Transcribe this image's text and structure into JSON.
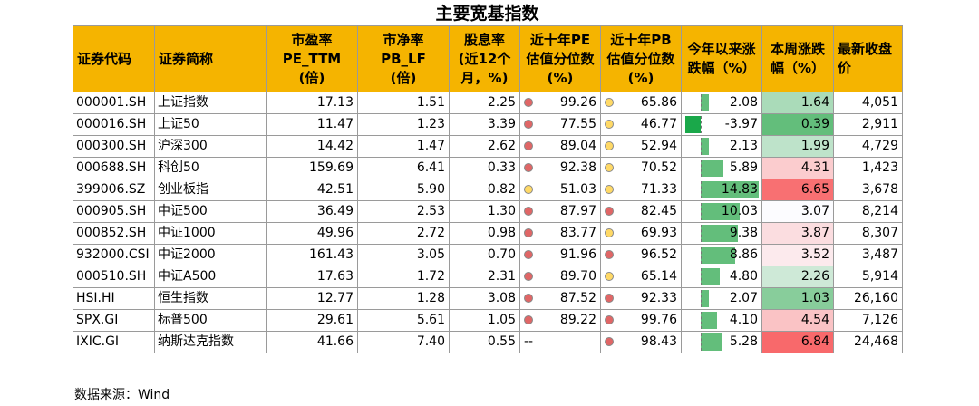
{
  "title": "主要宽基指数",
  "columns": [
    "证券代码",
    "证券简称",
    "市盈率PE_TTM(倍)",
    "市净率PB_LF(倍)",
    "股息率(近12个月，%)",
    "近十年PE估值分位数(%)",
    "近十年PB估值分位数(%)",
    "今年以来涨跌幅（%）",
    "本周涨跌幅（%）",
    "最新收盘价"
  ],
  "header_lines": {
    "code": "证券代码",
    "name": "证券简称",
    "pe": [
      "市盈率",
      "PE_TTM",
      "(倍)"
    ],
    "pb": [
      "市净率",
      "PB_LF",
      "(倍)"
    ],
    "div": [
      "股息率",
      "(近12个",
      "月，%)"
    ],
    "pe_pct": [
      "近十年PE",
      "估值分位数",
      "(%)"
    ],
    "pb_pct": [
      "近十年PB",
      "估值分位数",
      "(%)"
    ],
    "ytd": [
      "今年以来涨",
      "跌幅（%）"
    ],
    "wk": [
      "本周涨跌",
      "幅（%）"
    ],
    "close": [
      "最新收盘",
      "价"
    ]
  },
  "rows": [
    {
      "code": "000001.SH",
      "name": "上证指数",
      "pe": "17.13",
      "pb": "1.51",
      "div": "2.25",
      "pe_pct": "99.26",
      "pe_status": "red",
      "pb_pct": "65.86",
      "pb_status": "yellow",
      "ytd": "2.08",
      "ytd_value": 2.08,
      "wk": "1.64",
      "wk_value": 1.64,
      "close": "4,051"
    },
    {
      "code": "000016.SH",
      "name": "上证50",
      "pe": "11.47",
      "pb": "1.23",
      "div": "3.39",
      "pe_pct": "77.55",
      "pe_status": "red",
      "pb_pct": "46.77",
      "pb_status": "yellow",
      "ytd": "-3.97",
      "ytd_value": -3.97,
      "wk": "0.39",
      "wk_value": 0.39,
      "close": "2,911"
    },
    {
      "code": "000300.SH",
      "name": "沪深300",
      "pe": "14.42",
      "pb": "1.47",
      "div": "2.62",
      "pe_pct": "89.04",
      "pe_status": "red",
      "pb_pct": "52.94",
      "pb_status": "yellow",
      "ytd": "2.13",
      "ytd_value": 2.13,
      "wk": "1.99",
      "wk_value": 1.99,
      "close": "4,729"
    },
    {
      "code": "000688.SH",
      "name": "科创50",
      "pe": "159.69",
      "pb": "6.41",
      "div": "0.33",
      "pe_pct": "92.38",
      "pe_status": "red",
      "pb_pct": "70.52",
      "pb_status": "yellow",
      "ytd": "5.89",
      "ytd_value": 5.89,
      "wk": "4.31",
      "wk_value": 4.31,
      "close": "1,423"
    },
    {
      "code": "399006.SZ",
      "name": "创业板指",
      "pe": "42.51",
      "pb": "5.90",
      "div": "0.82",
      "pe_pct": "51.03",
      "pe_status": "yellow",
      "pb_pct": "71.33",
      "pb_status": "yellow",
      "ytd": "14.83",
      "ytd_value": 14.83,
      "wk": "6.65",
      "wk_value": 6.65,
      "close": "3,678"
    },
    {
      "code": "000905.SH",
      "name": "中证500",
      "pe": "36.49",
      "pb": "2.53",
      "div": "1.30",
      "pe_pct": "87.97",
      "pe_status": "red",
      "pb_pct": "82.45",
      "pb_status": "red",
      "ytd": "10.03",
      "ytd_value": 10.03,
      "wk": "3.07",
      "wk_value": 3.07,
      "close": "8,214"
    },
    {
      "code": "000852.SH",
      "name": "中证1000",
      "pe": "49.96",
      "pb": "2.72",
      "div": "0.98",
      "pe_pct": "83.77",
      "pe_status": "red",
      "pb_pct": "69.93",
      "pb_status": "yellow",
      "ytd": "9.38",
      "ytd_value": 9.38,
      "wk": "3.87",
      "wk_value": 3.87,
      "close": "8,307"
    },
    {
      "code": "932000.CSI",
      "name": "中证2000",
      "pe": "161.43",
      "pb": "3.05",
      "div": "0.70",
      "pe_pct": "91.96",
      "pe_status": "red",
      "pb_pct": "96.52",
      "pb_status": "red",
      "ytd": "8.86",
      "ytd_value": 8.86,
      "wk": "3.52",
      "wk_value": 3.52,
      "close": "3,487"
    },
    {
      "code": "000510.SH",
      "name": "中证A500",
      "pe": "17.63",
      "pb": "1.72",
      "div": "2.31",
      "pe_pct": "89.70",
      "pe_status": "red",
      "pb_pct": "65.14",
      "pb_status": "yellow",
      "ytd": "4.80",
      "ytd_value": 4.8,
      "wk": "2.26",
      "wk_value": 2.26,
      "close": "5,914"
    },
    {
      "code": "HSI.HI",
      "name": "恒生指数",
      "pe": "12.77",
      "pb": "1.28",
      "div": "3.08",
      "pe_pct": "87.52",
      "pe_status": "red",
      "pb_pct": "92.33",
      "pb_status": "red",
      "ytd": "2.07",
      "ytd_value": 2.07,
      "wk": "1.03",
      "wk_value": 1.03,
      "close": "26,160"
    },
    {
      "code": "SPX.GI",
      "name": "标普500",
      "pe": "29.61",
      "pb": "5.61",
      "div": "1.05",
      "pe_pct": "89.22",
      "pe_status": "red",
      "pb_pct": "99.76",
      "pb_status": "red",
      "ytd": "4.10",
      "ytd_value": 4.1,
      "wk": "4.54",
      "wk_value": 4.54,
      "close": "7,126"
    },
    {
      "code": "IXIC.GI",
      "name": "纳斯达克指数",
      "pe": "41.66",
      "pb": "7.40",
      "div": "0.55",
      "pe_pct": "--",
      "pe_status": "none",
      "pb_pct": "98.43",
      "pb_status": "red",
      "ytd": "5.28",
      "ytd_value": 5.28,
      "wk": "6.84",
      "wk_value": 6.84,
      "close": "24,468"
    }
  ],
  "colors": {
    "header_bg": "#f5b400",
    "status_red": "#e06666",
    "status_yellow": "#ffd966",
    "bar_green": "#63be7b",
    "bar_negative": "#1aa84a",
    "heat_low": "#63be7b",
    "heat_mid": "#fcfcff",
    "heat_high": "#f8696b"
  },
  "source": "数据来源：Wind"
}
